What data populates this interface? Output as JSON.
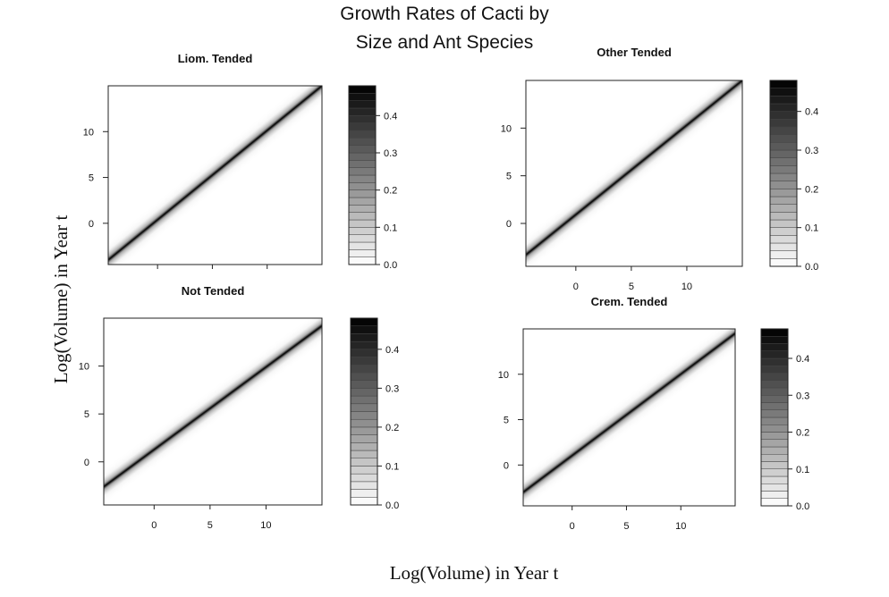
{
  "figure": {
    "title_line1": "Growth Rates of Cacti by",
    "title_line2": "Size and Ant Species",
    "xlabel": "Log(Volume) in Year t",
    "ylabel": "Log(Volume) in Year t"
  },
  "chart_data": [
    {
      "type": "heatmap",
      "title": "Liom. Tended",
      "xlim": [
        -4.5,
        15
      ],
      "ylim": [
        -4.5,
        15
      ],
      "xticks": [],
      "yticks": [
        "0",
        "5",
        "10"
      ],
      "colorbar": {
        "range": [
          0,
          0.48
        ],
        "ticks": [
          "0.0",
          "0.1",
          "0.2",
          "0.3",
          "0.4"
        ]
      },
      "ridge": {
        "x0": -4.5,
        "y0": -4.0,
        "x1": 15,
        "y1": 15,
        "peak": 0.46
      }
    },
    {
      "type": "heatmap",
      "title": "Other Tended",
      "xlim": [
        -4.5,
        15
      ],
      "ylim": [
        -4.5,
        15
      ],
      "xticks": [
        "0",
        "5",
        "10"
      ],
      "yticks": [
        "0",
        "5",
        "10"
      ],
      "colorbar": {
        "range": [
          0,
          0.48
        ],
        "ticks": [
          "0.0",
          "0.1",
          "0.2",
          "0.3",
          "0.4"
        ]
      },
      "ridge": {
        "x0": -4.5,
        "y0": -3.3,
        "x1": 15,
        "y1": 15,
        "peak": 0.46
      }
    },
    {
      "type": "heatmap",
      "title": "Not Tended",
      "xlim": [
        -4.5,
        15
      ],
      "ylim": [
        -4.5,
        15
      ],
      "xticks": [
        "0",
        "5",
        "10"
      ],
      "yticks": [
        "0",
        "5",
        "10"
      ],
      "colorbar": {
        "range": [
          0,
          0.48
        ],
        "ticks": [
          "0.0",
          "0.1",
          "0.2",
          "0.3",
          "0.4"
        ]
      },
      "ridge": {
        "x0": -4.5,
        "y0": -2.6,
        "x1": 15,
        "y1": 14.2,
        "peak": 0.46
      }
    },
    {
      "type": "heatmap",
      "title": "Crem. Tended",
      "xlim": [
        -4.5,
        15
      ],
      "ylim": [
        -4.5,
        15
      ],
      "xticks": [
        "0",
        "5",
        "10"
      ],
      "yticks": [
        "0",
        "5",
        "10"
      ],
      "colorbar": {
        "range": [
          0,
          0.48
        ],
        "ticks": [
          "0.0",
          "0.1",
          "0.2",
          "0.3",
          "0.4"
        ]
      },
      "ridge": {
        "x0": -4.5,
        "y0": -3.0,
        "x1": 15,
        "y1": 14.5,
        "peak": 0.46
      }
    }
  ]
}
